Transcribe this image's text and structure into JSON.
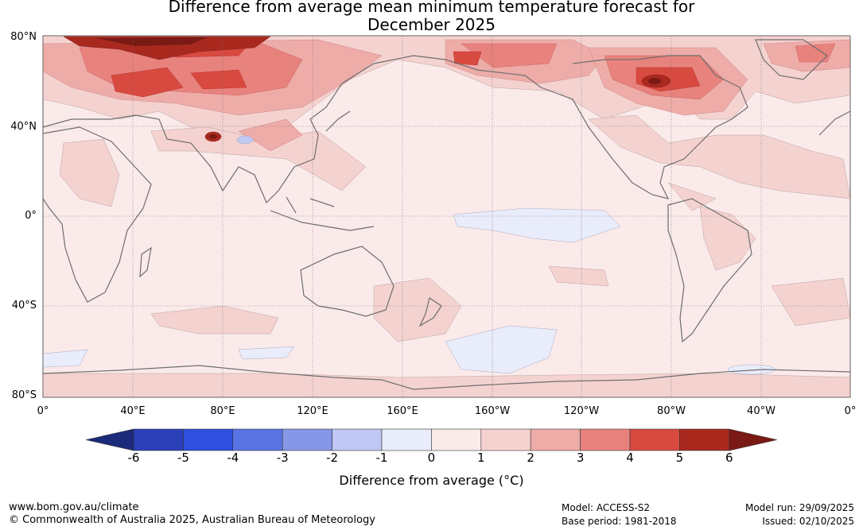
{
  "title": {
    "line1": "Difference from average mean minimum temperature forecast for",
    "line2": "December 2025"
  },
  "lat_labels": [
    "80°N",
    "40°N",
    "0°",
    "40°S",
    "80°S"
  ],
  "lon_labels": [
    "0°",
    "40°E",
    "80°E",
    "120°E",
    "160°E",
    "160°W",
    "120°W",
    "80°W",
    "40°W",
    "0°"
  ],
  "legend": {
    "title": "Difference from average (°C)",
    "ticks": [
      "-6",
      "-5",
      "-4",
      "-3",
      "-2",
      "-1",
      "0",
      "1",
      "2",
      "3",
      "4",
      "5",
      "6"
    ],
    "colors": [
      "#1b2a7a",
      "#2a3fb8",
      "#2f4fe0",
      "#5a73e2",
      "#8797e8",
      "#c0c8f3",
      "#e8ecfb",
      "#fbeaea",
      "#f4d2d0",
      "#eeaca8",
      "#e8827d",
      "#d84a40",
      "#a9291f",
      "#7a1a14"
    ]
  },
  "footer": {
    "url": "www.bom.gov.au/climate",
    "copyright": "© Commonwealth of Australia 2025, Australian Bureau of Meteorology",
    "model": "Model: ACCESS-S2",
    "base_period": "Base period: 1981-2018",
    "model_run": "Model run: 29/09/2025",
    "issued": "Issued: 02/10/2025"
  }
}
